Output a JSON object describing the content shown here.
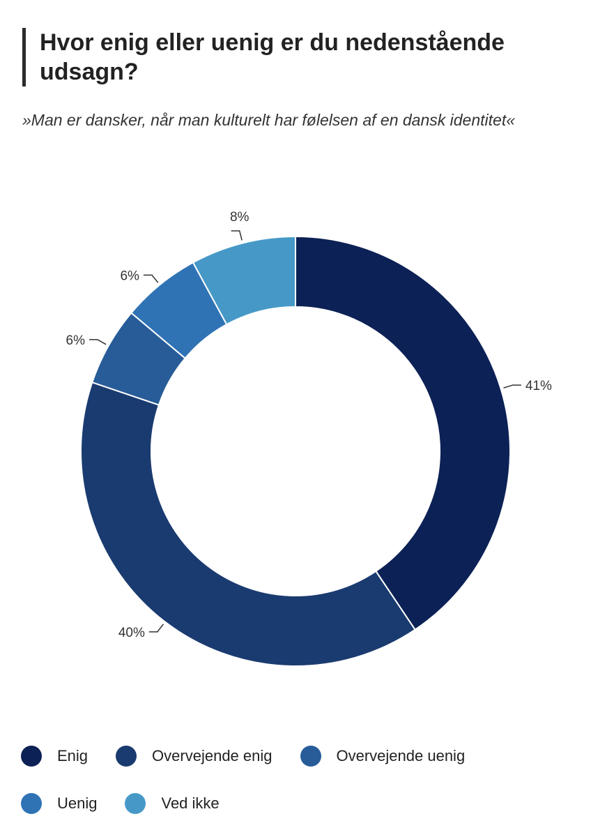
{
  "header": {
    "title": "Hvor enig eller uenig er du nedenstående udsagn?",
    "subtitle": "»Man er dansker, når man kulturelt har følelsen af en dansk identitet«"
  },
  "chart_data": {
    "type": "pie",
    "donut": true,
    "categories": [
      "Enig",
      "Overvejende enig",
      "Overvejende uenig",
      "Uenig",
      "Ved ikke"
    ],
    "values": [
      41,
      40,
      6,
      6,
      8
    ],
    "labels": [
      "41%",
      "40%",
      "6%",
      "6%",
      "8%"
    ],
    "colors": [
      "#0c2155",
      "#1a3b70",
      "#275c98",
      "#2f73b5",
      "#4699c7"
    ],
    "legend_placement": "bottom"
  },
  "legend": {
    "items": [
      {
        "label": "Enig",
        "color": "#0c2155"
      },
      {
        "label": "Overvejende enig",
        "color": "#1a3b70"
      },
      {
        "label": "Overvejende uenig",
        "color": "#275c98"
      },
      {
        "label": "Uenig",
        "color": "#2f73b5"
      },
      {
        "label": "Ved ikke",
        "color": "#4699c7"
      }
    ]
  }
}
